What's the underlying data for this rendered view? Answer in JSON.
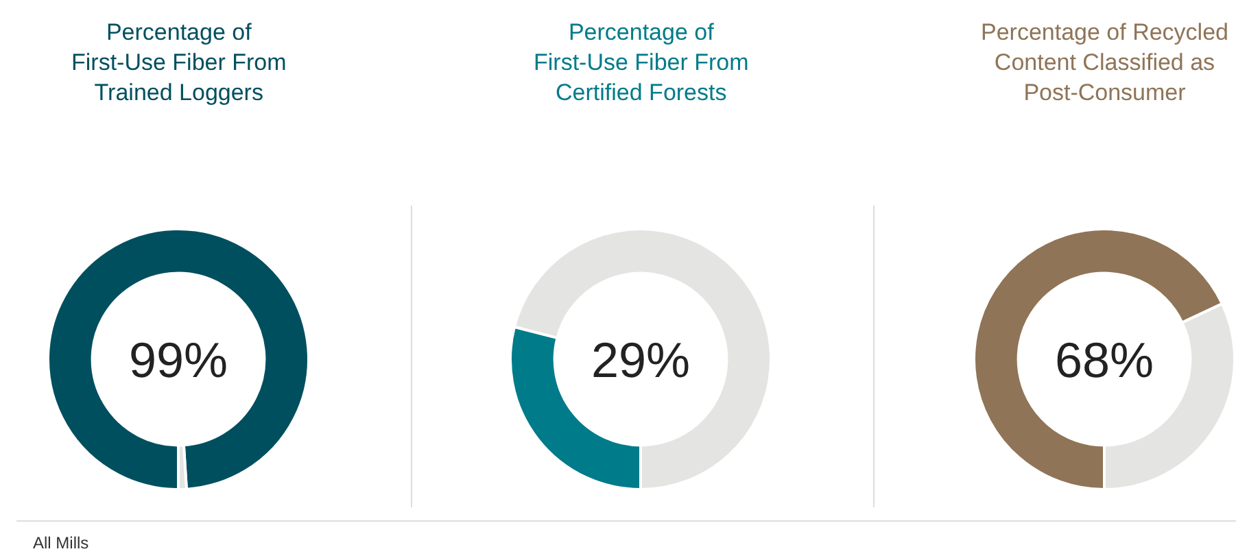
{
  "chart_data": [
    {
      "type": "donut",
      "title": "Percentage of\nFirst-Use Fiber From\nTrained Loggers",
      "categories": [
        null,
        null
      ],
      "values": [
        99,
        1
      ],
      "colors": [
        "#004f5f",
        "#e4e4e2"
      ],
      "value_labels": [
        "99%",
        null
      ],
      "annotations": [
        "All Mills"
      ]
    },
    {
      "type": "donut",
      "title": "Percentage of\nFirst-Use Fiber From\nCertified Forests",
      "categories": [
        null,
        null
      ],
      "values": [
        29,
        71
      ],
      "colors": [
        "#007b8a",
        "#e4e4e2"
      ],
      "value_labels": [
        "29%",
        null
      ]
    },
    {
      "type": "donut",
      "title": "Percentage of Recycled\nContent Classified as\nPost-Consumer",
      "categories": [
        null,
        null
      ],
      "values": [
        68,
        32
      ],
      "colors": [
        "#8f7457",
        "#e4e4e2"
      ],
      "value_labels": [
        "68%",
        null
      ]
    }
  ]
}
